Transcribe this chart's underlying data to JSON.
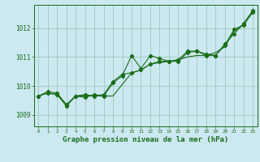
{
  "title": "Graphe pression niveau de la mer (hPa)",
  "background_color": "#cce8f0",
  "grid_color": "#99ccbb",
  "line_color": "#1a6e1a",
  "xlim": [
    -0.5,
    23.5
  ],
  "ylim": [
    1008.6,
    1012.8
  ],
  "yticks": [
    1009,
    1010,
    1011,
    1012
  ],
  "xticks": [
    0,
    1,
    2,
    3,
    4,
    5,
    6,
    7,
    8,
    9,
    10,
    11,
    12,
    13,
    14,
    15,
    16,
    17,
    18,
    19,
    20,
    21,
    22,
    23
  ],
  "series1": {
    "x": [
      0,
      1,
      2,
      3,
      4,
      5,
      6,
      7,
      8,
      9,
      10,
      11,
      12,
      13,
      14,
      15,
      16,
      17,
      18,
      19,
      20,
      21,
      22,
      23
    ],
    "y": [
      1009.65,
      1009.75,
      1009.7,
      1009.35,
      1009.65,
      1009.65,
      1009.65,
      1009.65,
      1009.65,
      1010.05,
      1010.45,
      1010.55,
      1010.75,
      1010.8,
      1010.85,
      1010.9,
      1011.0,
      1011.05,
      1011.05,
      1011.15,
      1011.35,
      1011.9,
      1012.1,
      1012.55
    ]
  },
  "series2": {
    "x": [
      0,
      1,
      2,
      3,
      4,
      5,
      6,
      7,
      8,
      9,
      10,
      11,
      12,
      13,
      14,
      15,
      16,
      17,
      18,
      19,
      20,
      21,
      22,
      23
    ],
    "y": [
      1009.65,
      1009.75,
      1009.7,
      1009.3,
      1009.65,
      1009.6,
      1009.7,
      1009.65,
      1010.1,
      1010.35,
      1011.05,
      1010.6,
      1011.05,
      1010.95,
      1010.85,
      1010.85,
      1011.15,
      1011.2,
      1011.05,
      1011.05,
      1011.45,
      1011.8,
      1012.15,
      1012.6
    ]
  },
  "series3": {
    "x": [
      0,
      1,
      2,
      3,
      4,
      5,
      6,
      7,
      8,
      9,
      10,
      11,
      12,
      13,
      14,
      15,
      16,
      17,
      18,
      19,
      20,
      21,
      22,
      23
    ],
    "y": [
      1009.65,
      1009.8,
      1009.75,
      1009.35,
      1009.65,
      1009.7,
      1009.65,
      1009.7,
      1010.15,
      1010.4,
      1010.45,
      1010.55,
      1010.75,
      1010.85,
      1010.85,
      1010.9,
      1011.2,
      1011.2,
      1011.1,
      1011.05,
      1011.4,
      1011.95,
      1012.1,
      1012.55
    ]
  },
  "xlabel_fontsize": 6.5,
  "ytick_fontsize": 5.5,
  "xtick_fontsize": 4.2
}
